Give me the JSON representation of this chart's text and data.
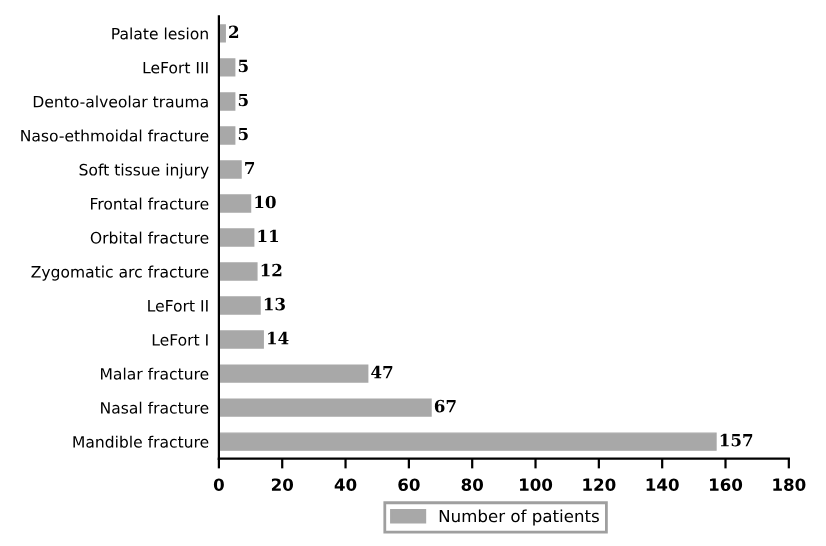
{
  "chart_data": {
    "type": "bar",
    "orientation": "horizontal",
    "categories": [
      "Palate lesion",
      "LeFort III",
      "Dento-alveolar trauma",
      "Naso-ethmoidal fracture",
      "Soft tissue injury",
      "Frontal fracture",
      "Orbital fracture",
      "Zygomatic arc fracture",
      "LeFort II",
      "LeFort I",
      "Malar fracture",
      "Nasal fracture",
      "Mandible fracture"
    ],
    "series": [
      {
        "name": "Number of patients",
        "color": "#a8a8a8",
        "values": [
          2,
          5,
          5,
          5,
          7,
          10,
          11,
          12,
          13,
          14,
          47,
          67,
          157
        ]
      }
    ],
    "xlim": [
      0,
      180
    ],
    "xticks": [
      0,
      20,
      40,
      60,
      80,
      100,
      120,
      140,
      160,
      180
    ],
    "data_labels": true,
    "legend": "bottom",
    "grid": false
  }
}
